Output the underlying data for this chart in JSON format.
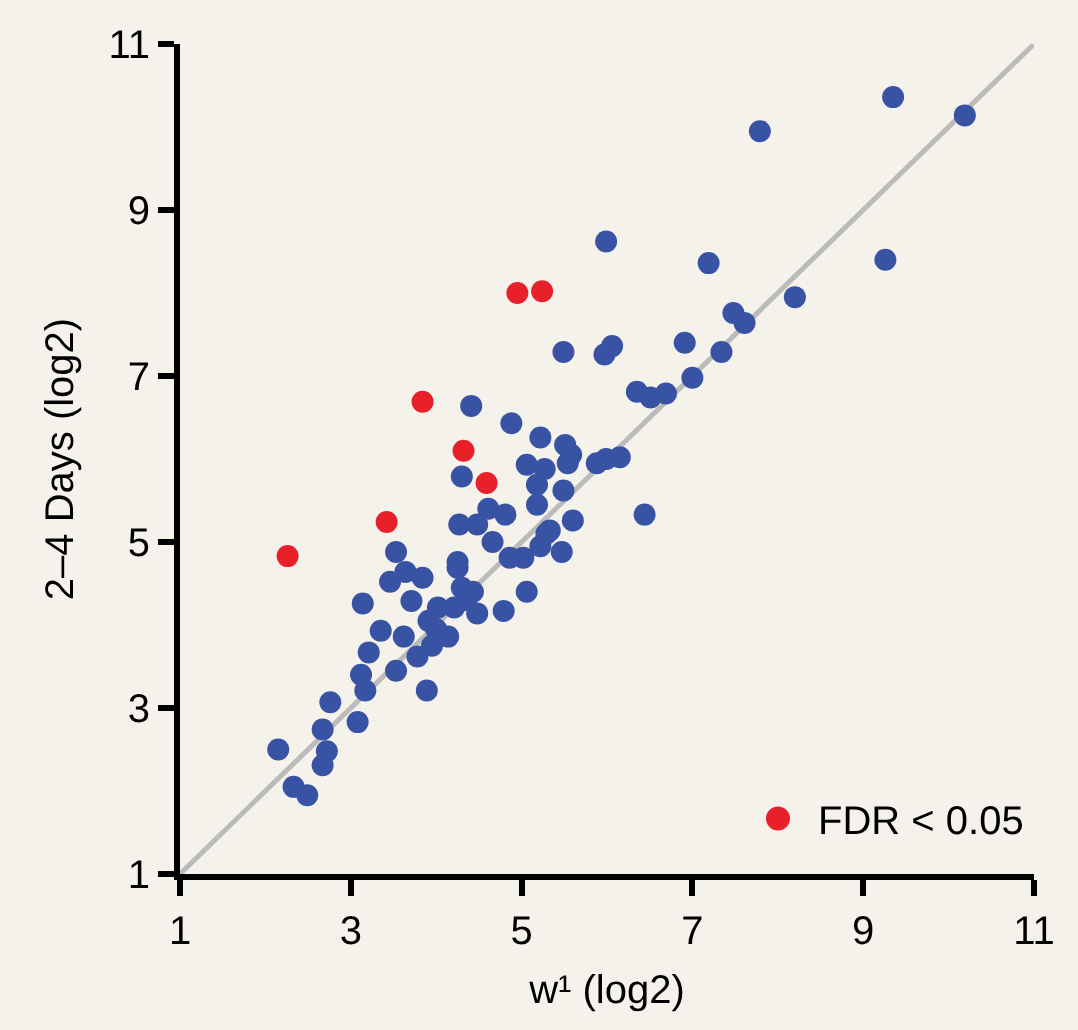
{
  "chart_data": {
    "type": "scatter",
    "xlabel": "w¹ (log2)",
    "ylabel": "2–4 Days (log2)",
    "xlim": [
      1,
      11
    ],
    "ylim": [
      1,
      11
    ],
    "xticks": [
      1,
      3,
      5,
      7,
      9,
      11
    ],
    "yticks": [
      1,
      3,
      5,
      7,
      9,
      11
    ],
    "grid": false,
    "legend": "bottom right",
    "marker": "circle",
    "series": [
      {
        "color": "#3953a4",
        "x": [
          9.35,
          10.19,
          7.79,
          5.99,
          7.19,
          9.26,
          8.2,
          7.48,
          7.61,
          5.49,
          5.97,
          6.06,
          6.91,
          7.34,
          6.35,
          6.51,
          6.69,
          7.0,
          4.41,
          4.88,
          5.22,
          5.51,
          5.58,
          5.54,
          5.88,
          5.99,
          6.15,
          5.06,
          5.27,
          5.18,
          4.3,
          5.49,
          4.61,
          4.81,
          5.18,
          4.27,
          4.48,
          5.6,
          6.44,
          5.29,
          4.66,
          5.22,
          5.47,
          5.02,
          4.25,
          2.15,
          2.33,
          2.49,
          2.67,
          2.72,
          2.67,
          2.76,
          3.08,
          3.17,
          3.12,
          3.21,
          3.35,
          3.14,
          3.46,
          3.53,
          3.71,
          3.64,
          3.84,
          3.53,
          3.62,
          3.78,
          3.89,
          3.91,
          4.02,
          4.14,
          4.25,
          4.3,
          4.43,
          4.48,
          4.21,
          4.79,
          5.06,
          4.86,
          5.33,
          4.0,
          4.35,
          3.95
        ],
        "values": [
          10.36,
          10.14,
          9.95,
          8.62,
          8.36,
          8.4,
          7.95,
          7.76,
          7.64,
          7.29,
          7.26,
          7.36,
          7.4,
          7.29,
          6.81,
          6.74,
          6.79,
          6.98,
          6.64,
          6.43,
          6.26,
          6.17,
          6.05,
          5.95,
          5.95,
          6.0,
          6.02,
          5.93,
          5.88,
          5.69,
          5.79,
          5.62,
          5.4,
          5.33,
          5.45,
          5.21,
          5.21,
          5.26,
          5.33,
          5.1,
          5.0,
          4.95,
          4.88,
          4.81,
          4.76,
          2.5,
          2.05,
          1.95,
          2.31,
          2.48,
          2.74,
          3.07,
          2.83,
          3.21,
          3.4,
          3.67,
          3.93,
          4.26,
          4.52,
          4.88,
          4.29,
          4.64,
          4.57,
          3.45,
          3.86,
          3.62,
          3.21,
          4.05,
          4.21,
          3.86,
          4.69,
          4.45,
          4.4,
          4.14,
          4.21,
          4.17,
          4.4,
          4.81,
          5.14,
          3.95,
          4.3,
          3.75
        ]
      },
      {
        "name": "FDR < 0.05",
        "color": "#e8202a",
        "x": [
          2.26,
          3.42,
          3.84,
          4.32,
          4.59,
          4.95,
          5.24
        ],
        "values": [
          4.83,
          5.24,
          6.69,
          6.1,
          5.71,
          8.0,
          8.02
        ]
      },
      {
        "type": "line",
        "color": "#bbbbbb",
        "marker": "none",
        "x": [
          1,
          11
        ],
        "values": [
          1,
          11
        ]
      }
    ]
  }
}
